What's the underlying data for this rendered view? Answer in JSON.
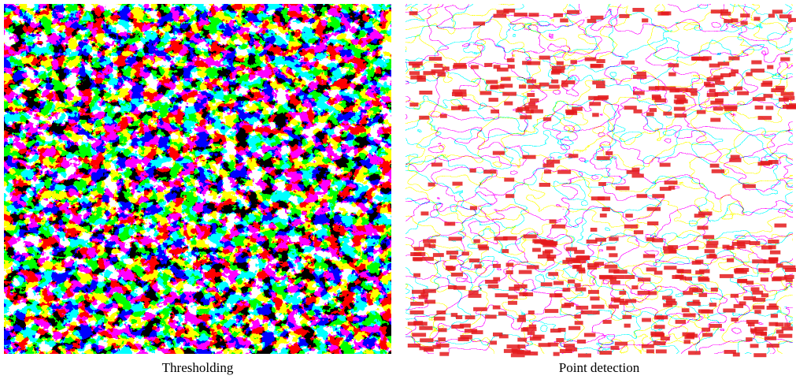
{
  "panels": [
    {
      "caption": "Thresholding"
    },
    {
      "caption": "Point detection"
    }
  ]
}
